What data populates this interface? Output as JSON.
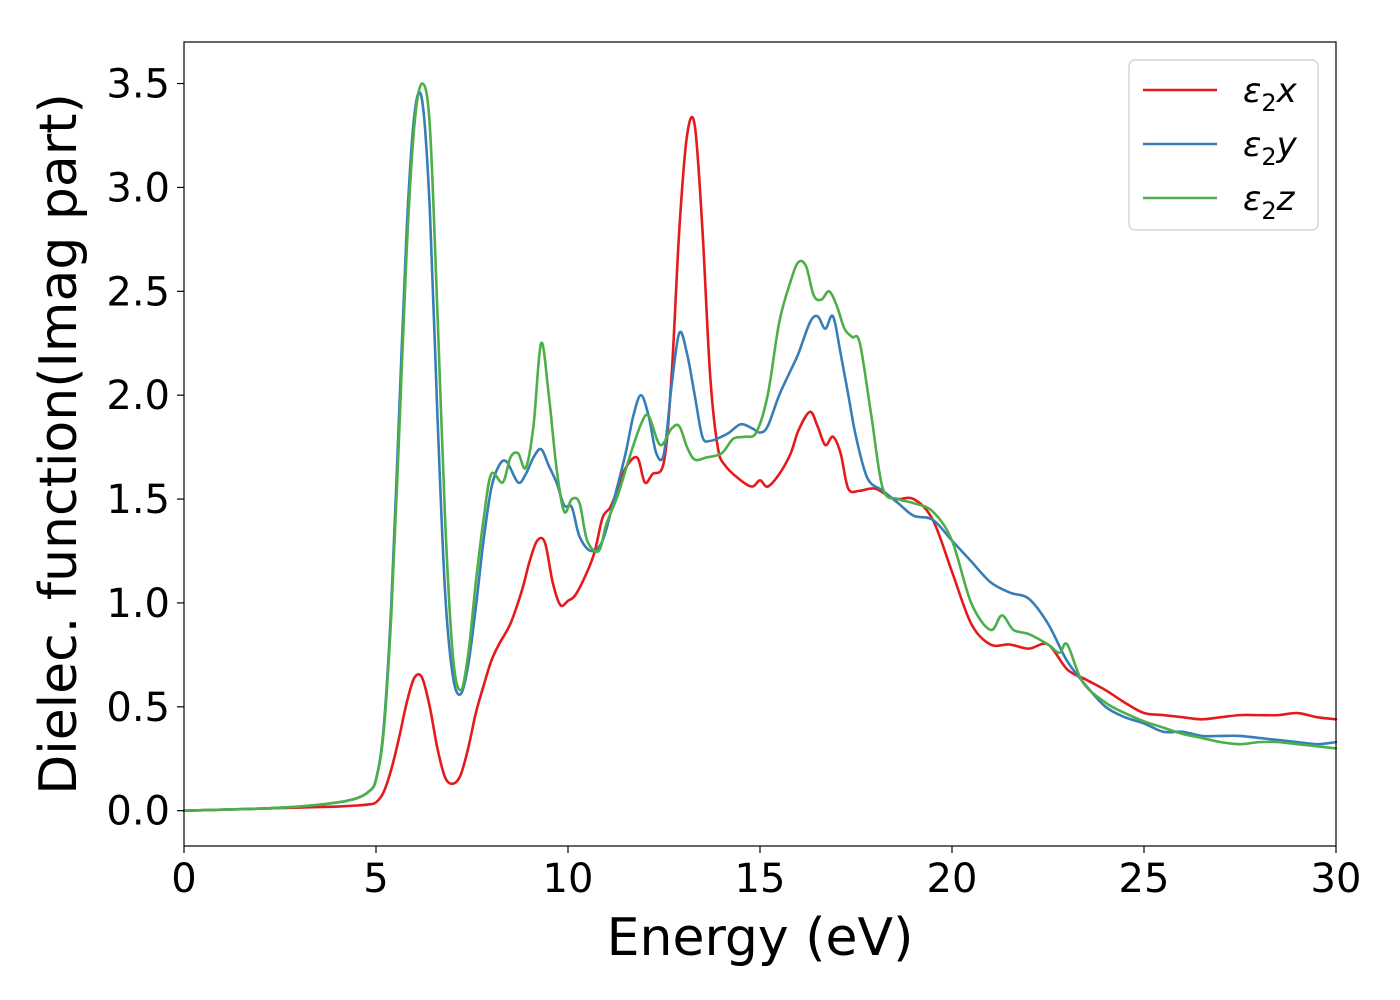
{
  "chart_data": {
    "type": "line",
    "title": "",
    "xlabel": "Energy (eV)",
    "ylabel": "Dielec. function(Imag part)",
    "xlim": [
      0,
      30
    ],
    "ylim": [
      -0.17,
      3.7
    ],
    "xticks": [
      0,
      5,
      10,
      15,
      20,
      25,
      30
    ],
    "xtick_labels": [
      "0",
      "5",
      "10",
      "15",
      "20",
      "25",
      "30"
    ],
    "yticks": [
      0.0,
      0.5,
      1.0,
      1.5,
      2.0,
      2.5,
      3.0,
      3.5
    ],
    "ytick_labels": [
      "0.0",
      "0.5",
      "1.0",
      "1.5",
      "2.0",
      "2.5",
      "3.0",
      "3.5"
    ],
    "grid": false,
    "legend_position": "top-right",
    "series": [
      {
        "name": "ε₂x",
        "label_base": "ε",
        "label_sub": "2",
        "label_tail": "x",
        "color": "#e41a1c",
        "x": [
          0,
          1,
          2,
          3,
          4,
          4.5,
          4.8,
          5.0,
          5.2,
          5.4,
          5.6,
          5.8,
          6.0,
          6.2,
          6.4,
          6.6,
          6.8,
          7.0,
          7.2,
          7.4,
          7.6,
          7.8,
          8.0,
          8.2,
          8.5,
          8.8,
          9.0,
          9.2,
          9.4,
          9.6,
          9.8,
          10.0,
          10.2,
          10.5,
          10.7,
          10.9,
          11.1,
          11.3,
          11.5,
          11.8,
          12.0,
          12.2,
          12.5,
          12.7,
          12.9,
          13.1,
          13.3,
          13.5,
          13.7,
          13.9,
          14.1,
          14.5,
          14.8,
          15.0,
          15.2,
          15.5,
          15.8,
          16.0,
          16.3,
          16.5,
          16.7,
          16.9,
          17.1,
          17.3,
          17.6,
          18.0,
          18.5,
          19.0,
          19.5,
          20.0,
          20.5,
          21.0,
          21.5,
          22.0,
          22.5,
          23.0,
          23.5,
          24.0,
          24.5,
          25.0,
          25.5,
          26.0,
          26.5,
          27.0,
          27.5,
          28.0,
          28.5,
          29.0,
          29.5,
          30.0
        ],
        "y": [
          0.0,
          0.005,
          0.01,
          0.015,
          0.02,
          0.025,
          0.03,
          0.04,
          0.09,
          0.2,
          0.35,
          0.52,
          0.64,
          0.64,
          0.5,
          0.3,
          0.16,
          0.13,
          0.17,
          0.3,
          0.47,
          0.6,
          0.72,
          0.8,
          0.9,
          1.06,
          1.2,
          1.3,
          1.29,
          1.1,
          0.99,
          1.01,
          1.04,
          1.15,
          1.25,
          1.41,
          1.46,
          1.55,
          1.65,
          1.7,
          1.58,
          1.62,
          1.68,
          2.1,
          2.8,
          3.25,
          3.3,
          2.8,
          2.1,
          1.75,
          1.66,
          1.59,
          1.56,
          1.59,
          1.56,
          1.62,
          1.72,
          1.83,
          1.92,
          1.85,
          1.76,
          1.8,
          1.72,
          1.55,
          1.54,
          1.55,
          1.5,
          1.5,
          1.4,
          1.15,
          0.9,
          0.8,
          0.8,
          0.78,
          0.8,
          0.68,
          0.63,
          0.58,
          0.52,
          0.47,
          0.46,
          0.45,
          0.44,
          0.45,
          0.46,
          0.46,
          0.46,
          0.47,
          0.45,
          0.44
        ]
      },
      {
        "name": "ε₂y",
        "label_base": "ε",
        "label_sub": "2",
        "label_tail": "y",
        "color": "#377eb8",
        "x": [
          0,
          1,
          2,
          3,
          4,
          4.5,
          4.8,
          5.0,
          5.2,
          5.4,
          5.6,
          5.8,
          6.0,
          6.2,
          6.4,
          6.6,
          6.8,
          7.0,
          7.2,
          7.4,
          7.6,
          7.8,
          8.0,
          8.2,
          8.4,
          8.7,
          8.9,
          9.1,
          9.3,
          9.5,
          9.7,
          9.9,
          10.1,
          10.3,
          10.6,
          10.9,
          11.2,
          11.5,
          11.7,
          11.9,
          12.1,
          12.3,
          12.5,
          12.7,
          12.9,
          13.1,
          13.3,
          13.5,
          13.7,
          14.0,
          14.2,
          14.5,
          14.8,
          15.0,
          15.2,
          15.5,
          15.8,
          16.0,
          16.3,
          16.5,
          16.7,
          16.9,
          17.1,
          17.3,
          17.5,
          17.8,
          18.2,
          18.6,
          19.0,
          19.5,
          20.0,
          20.5,
          21.0,
          21.5,
          22.0,
          22.5,
          23.0,
          23.5,
          24.0,
          24.5,
          25.0,
          25.5,
          26.0,
          26.5,
          27.0,
          27.5,
          28.0,
          28.5,
          29.0,
          29.5,
          30.0
        ],
        "y": [
          0.0,
          0.005,
          0.01,
          0.02,
          0.04,
          0.06,
          0.09,
          0.15,
          0.4,
          1.0,
          1.9,
          2.8,
          3.35,
          3.42,
          2.9,
          1.9,
          1.05,
          0.65,
          0.56,
          0.7,
          0.98,
          1.3,
          1.55,
          1.66,
          1.68,
          1.58,
          1.62,
          1.7,
          1.74,
          1.66,
          1.58,
          1.47,
          1.46,
          1.32,
          1.25,
          1.3,
          1.5,
          1.72,
          1.9,
          2.0,
          1.9,
          1.72,
          1.72,
          2.05,
          2.3,
          2.2,
          2.0,
          1.8,
          1.78,
          1.8,
          1.82,
          1.86,
          1.84,
          1.82,
          1.85,
          2.0,
          2.12,
          2.2,
          2.35,
          2.38,
          2.32,
          2.38,
          2.2,
          2.0,
          1.8,
          1.6,
          1.54,
          1.48,
          1.42,
          1.4,
          1.3,
          1.2,
          1.1,
          1.05,
          1.02,
          0.9,
          0.72,
          0.6,
          0.5,
          0.45,
          0.42,
          0.38,
          0.38,
          0.36,
          0.36,
          0.36,
          0.35,
          0.34,
          0.33,
          0.32,
          0.33
        ]
      },
      {
        "name": "ε₂z",
        "label_base": "ε",
        "label_sub": "2",
        "label_tail": "z",
        "color": "#4daf4a",
        "x": [
          0,
          1,
          2,
          3,
          4,
          4.5,
          4.8,
          5.0,
          5.2,
          5.4,
          5.6,
          5.8,
          6.0,
          6.2,
          6.4,
          6.6,
          6.8,
          7.0,
          7.2,
          7.4,
          7.6,
          7.8,
          8.0,
          8.3,
          8.5,
          8.7,
          8.9,
          9.1,
          9.3,
          9.5,
          9.7,
          9.9,
          10.1,
          10.3,
          10.5,
          10.8,
          11.0,
          11.3,
          11.6,
          11.9,
          12.1,
          12.4,
          12.7,
          12.9,
          13.1,
          13.3,
          13.6,
          14.0,
          14.3,
          14.6,
          14.9,
          15.2,
          15.5,
          15.8,
          16.0,
          16.2,
          16.4,
          16.6,
          16.8,
          17.0,
          17.2,
          17.4,
          17.6,
          17.9,
          18.2,
          18.6,
          19.0,
          19.5,
          20.0,
          20.5,
          21.0,
          21.3,
          21.6,
          22.0,
          22.5,
          22.8,
          23.0,
          23.4,
          24.0,
          24.5,
          25.0,
          25.5,
          26.0,
          26.5,
          27.0,
          27.5,
          28.0,
          28.5,
          29.0,
          29.5,
          30.0
        ],
        "y": [
          0.0,
          0.005,
          0.01,
          0.02,
          0.04,
          0.06,
          0.09,
          0.15,
          0.38,
          0.95,
          1.8,
          2.7,
          3.3,
          3.5,
          3.3,
          2.4,
          1.4,
          0.75,
          0.58,
          0.75,
          1.1,
          1.4,
          1.62,
          1.58,
          1.7,
          1.72,
          1.65,
          1.85,
          2.25,
          2.0,
          1.65,
          1.44,
          1.5,
          1.48,
          1.3,
          1.25,
          1.38,
          1.52,
          1.7,
          1.86,
          1.9,
          1.76,
          1.84,
          1.85,
          1.75,
          1.69,
          1.7,
          1.72,
          1.79,
          1.8,
          1.82,
          2.0,
          2.35,
          2.55,
          2.64,
          2.62,
          2.48,
          2.46,
          2.5,
          2.43,
          2.32,
          2.28,
          2.25,
          1.9,
          1.55,
          1.5,
          1.48,
          1.44,
          1.3,
          1.0,
          0.87,
          0.94,
          0.87,
          0.85,
          0.8,
          0.76,
          0.8,
          0.62,
          0.52,
          0.47,
          0.43,
          0.4,
          0.37,
          0.35,
          0.33,
          0.32,
          0.33,
          0.33,
          0.32,
          0.31,
          0.3
        ]
      }
    ]
  }
}
